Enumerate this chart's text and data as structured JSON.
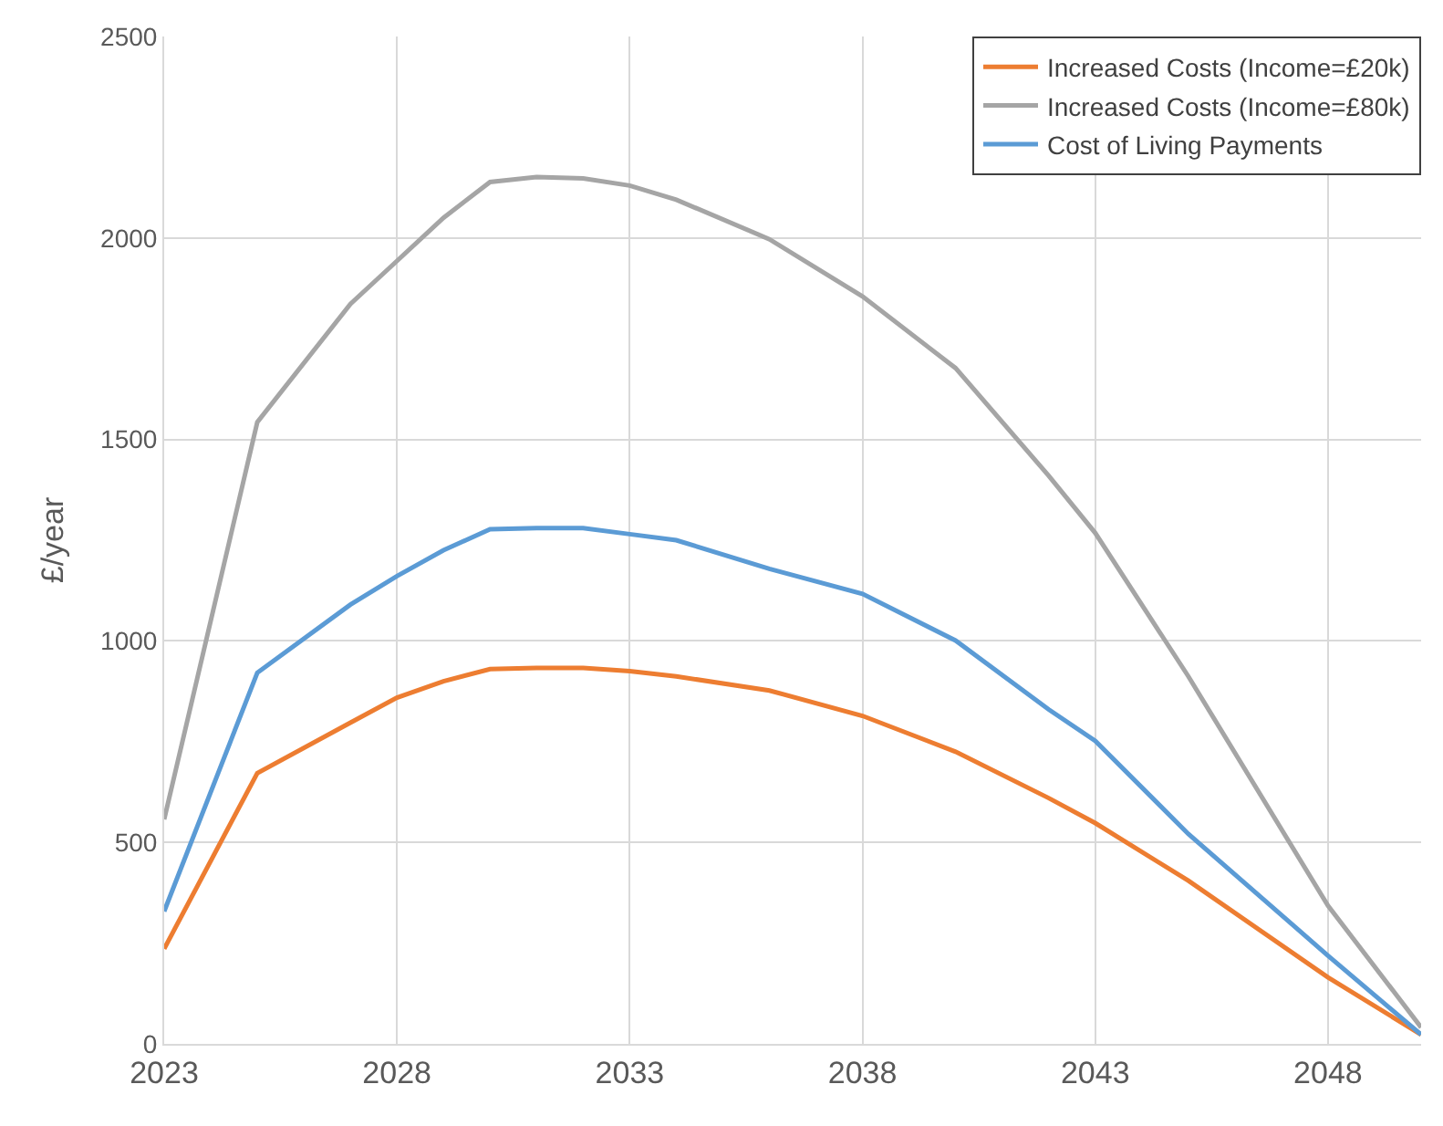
{
  "chart_data": {
    "type": "line",
    "ylabel": "£/year",
    "x": [
      2023,
      2025,
      2027,
      2028,
      2029,
      2030,
      2031,
      2032,
      2033,
      2034,
      2036,
      2038,
      2040,
      2042,
      2043,
      2045,
      2048,
      2050
    ],
    "series": [
      {
        "name": "Increased Costs (Income=£20k)",
        "color": "#ed7d31",
        "values": [
          236,
          672,
          797,
          859,
          900,
          930,
          933,
          933,
          925,
          912,
          877,
          814,
          725,
          610,
          548,
          405,
          165,
          23
        ]
      },
      {
        "name": "Increased Costs (Income=£80k)",
        "color": "#a5a5a5",
        "values": [
          557,
          1543,
          1836,
          1943,
          2050,
          2139,
          2151,
          2148,
          2130,
          2095,
          1997,
          1855,
          1677,
          1410,
          1268,
          912,
          343,
          41
        ]
      },
      {
        "name": "Cost of Living Payments",
        "color": "#5b9bd5",
        "values": [
          329,
          921,
          1090,
          1161,
          1225,
          1277,
          1280,
          1280,
          1265,
          1250,
          1179,
          1117,
          1001,
          830,
          752,
          521,
          219,
          23
        ]
      }
    ],
    "xlim": [
      2023,
      2050
    ],
    "xticks": [
      2023,
      2028,
      2033,
      2038,
      2043,
      2048
    ],
    "ylim": [
      0,
      2500
    ],
    "yticks": [
      0,
      500,
      1000,
      1500,
      2000,
      2500
    ],
    "grid": true,
    "legend": "top right",
    "marker": "none",
    "line_style": "solid"
  }
}
